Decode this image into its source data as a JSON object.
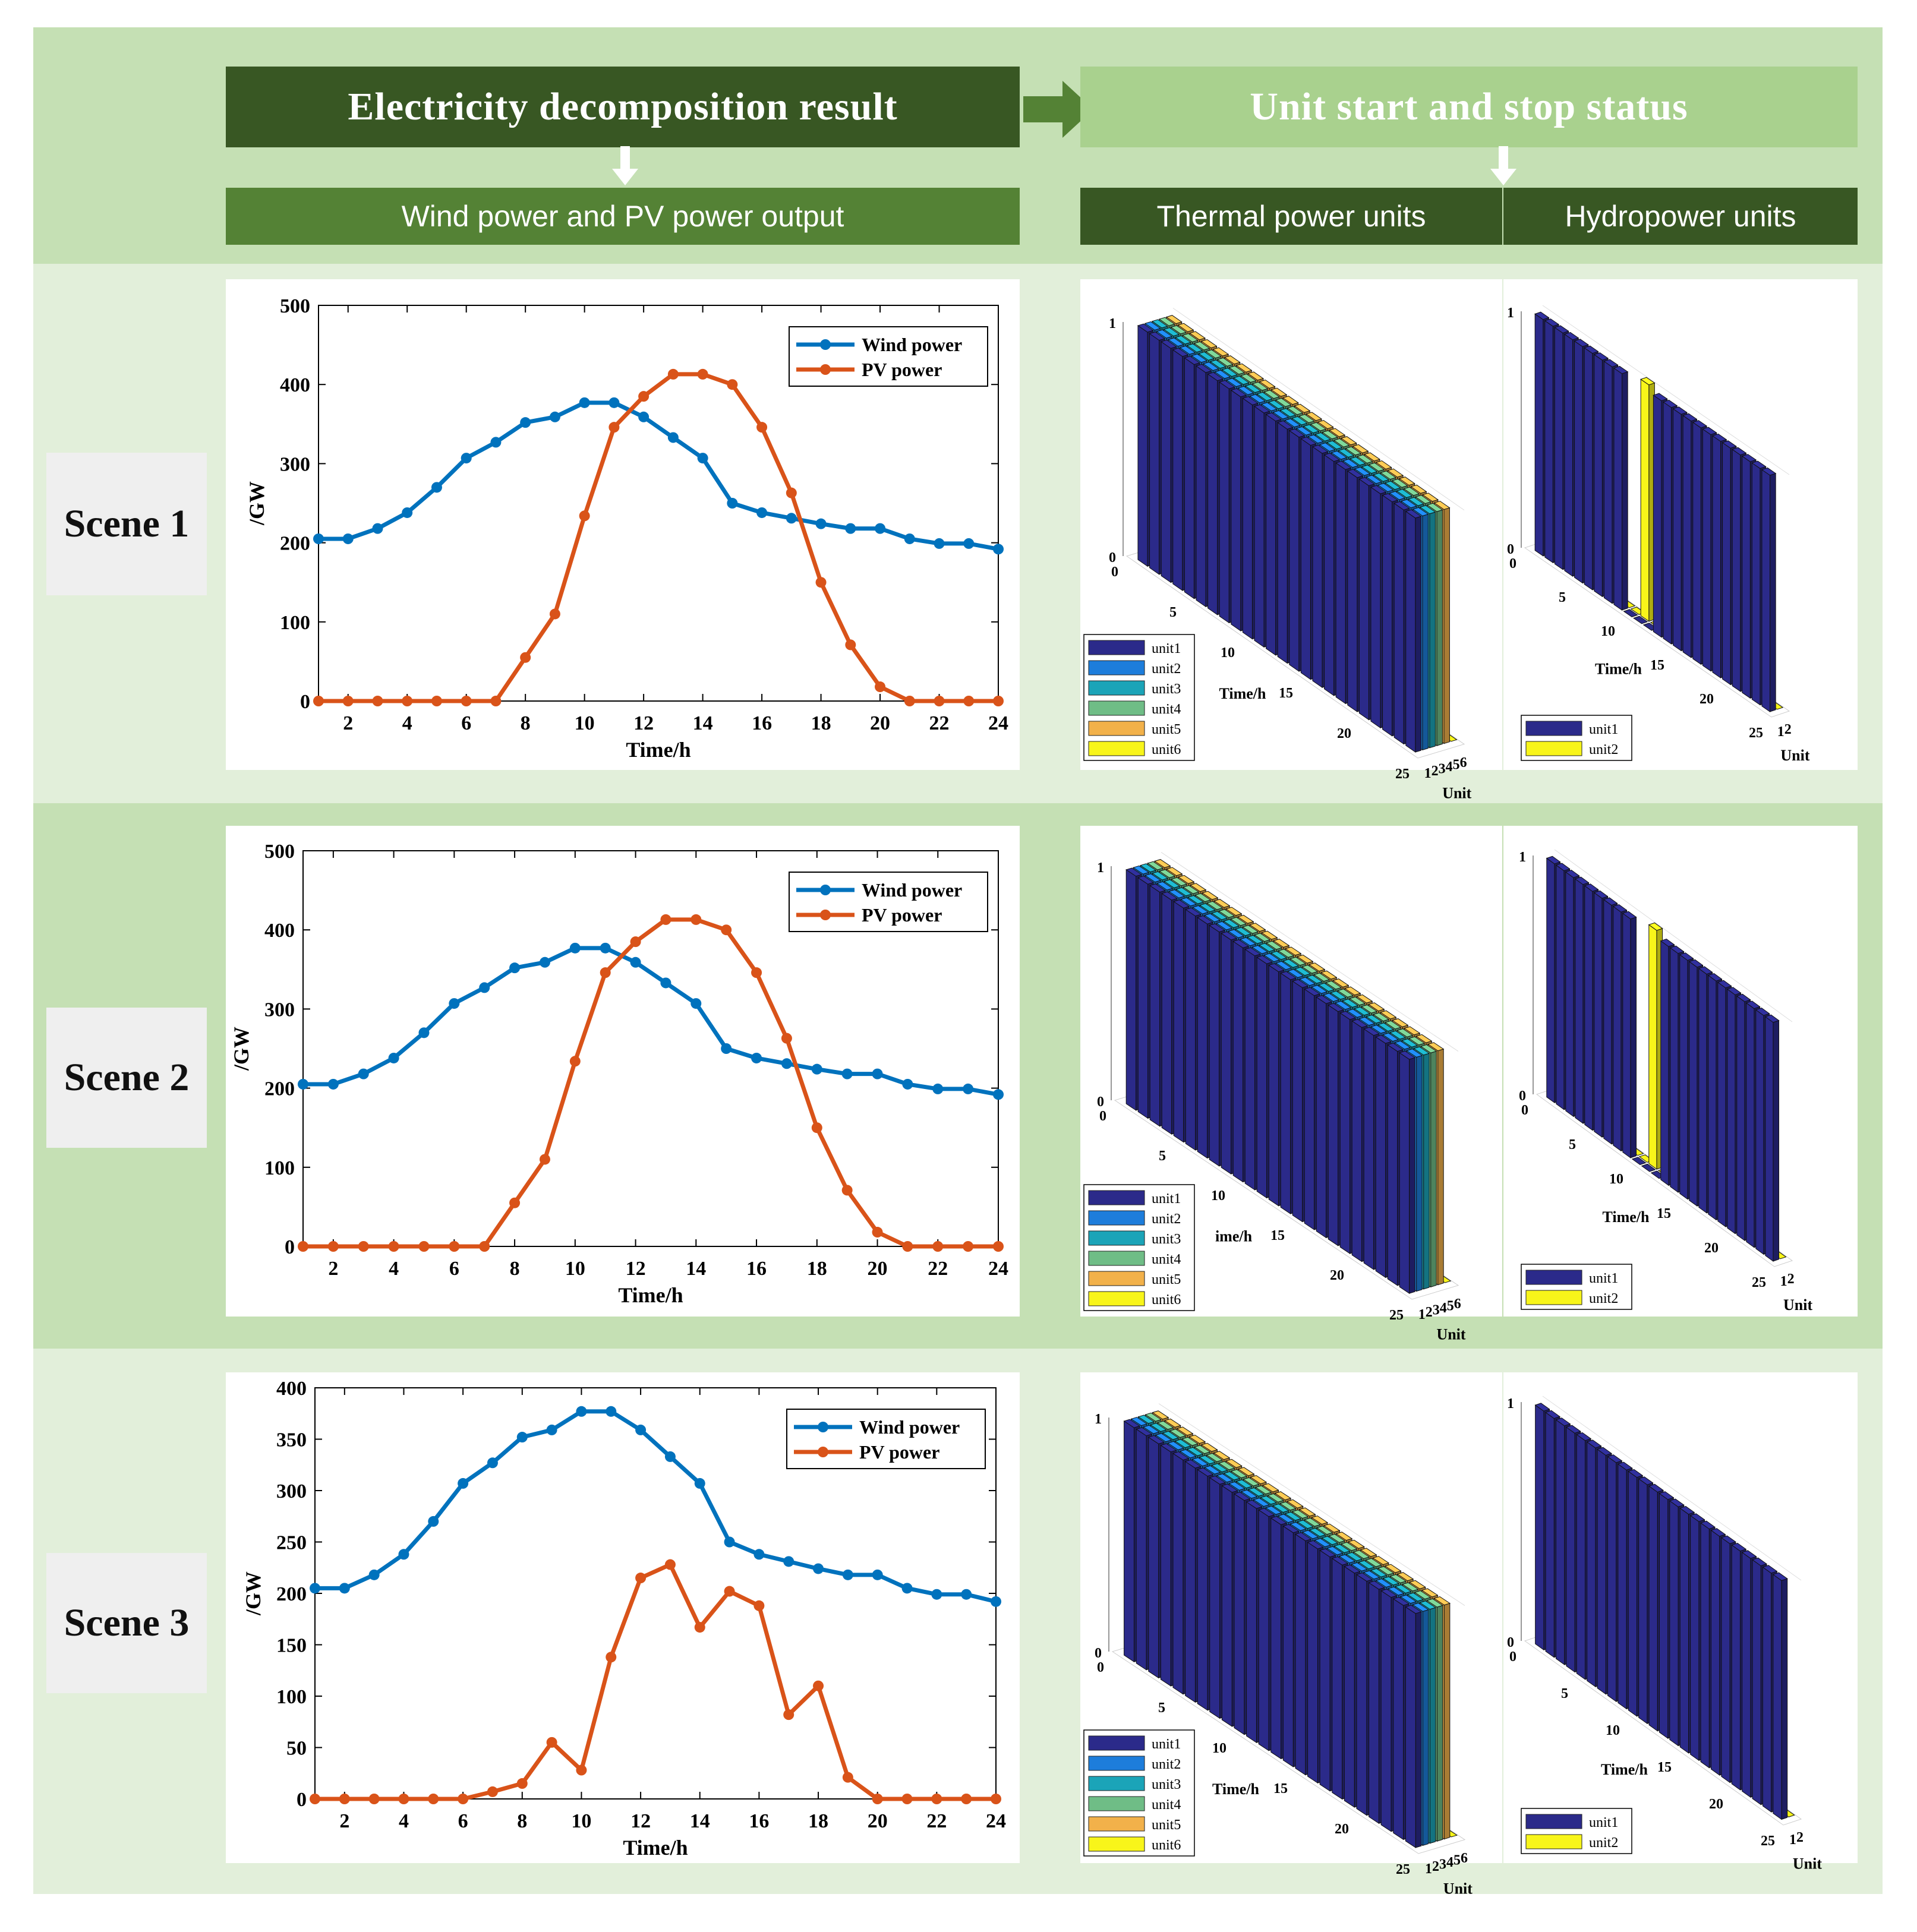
{
  "header": {
    "title_left": "Electricity decomposition result",
    "title_right": "Unit start and stop status",
    "sub_wind_pv": "Wind power and PV power output",
    "sub_thermal": "Thermal power units",
    "sub_hydro": "Hydropower units"
  },
  "colors": {
    "band_dark": "#c5e0b4",
    "band_light": "#e2efda",
    "header_dark": "#385723",
    "header_mid": "#548235",
    "header_light": "#a9d18e",
    "wind": "#0072bd",
    "pv": "#d95319"
  },
  "scenes": [
    {
      "label": "Scene 1",
      "line_chart": {
        "legend": [
          "Wind power",
          "PV power"
        ],
        "ylabel": "/GW",
        "xlabel": "Time/h",
        "yticks": [
          "0",
          "100",
          "200",
          "300",
          "400",
          "500"
        ],
        "xticks": [
          "2",
          "4",
          "6",
          "8",
          "10",
          "12",
          "14",
          "16",
          "18",
          "20",
          "22",
          "24"
        ]
      },
      "thermal": {
        "z_ticks": [
          "0",
          "1"
        ],
        "time_ticks": [
          "0",
          "5",
          "10",
          "15",
          "20",
          "25"
        ],
        "unit_ticks": [
          "1",
          "2",
          "3",
          "4",
          "5",
          "6"
        ],
        "time_label": "Time/h",
        "unit_label": "Unit",
        "legend": [
          "unit1",
          "unit2",
          "unit3",
          "unit4",
          "unit5",
          "unit6"
        ]
      },
      "hydro": {
        "z_ticks": [
          "0",
          "1"
        ],
        "time_ticks": [
          "0",
          "5",
          "10",
          "15",
          "20",
          "25"
        ],
        "unit_ticks": [
          "1",
          "2"
        ],
        "time_label": "Time/h",
        "unit_label": "Unit",
        "legend": [
          "unit1",
          "unit2"
        ]
      }
    },
    {
      "label": "Scene 2",
      "line_chart": {
        "legend": [
          "Wind power",
          "PV power"
        ],
        "ylabel": "/GW",
        "xlabel": "Time/h",
        "yticks": [
          "0",
          "100",
          "200",
          "300",
          "400",
          "500"
        ],
        "xticks": [
          "2",
          "4",
          "6",
          "8",
          "10",
          "12",
          "14",
          "16",
          "18",
          "20",
          "22",
          "24"
        ]
      },
      "thermal": {
        "z_ticks": [
          "0",
          "1"
        ],
        "time_ticks": [
          "0",
          "5",
          "10",
          "15",
          "20",
          "25"
        ],
        "unit_ticks": [
          "1",
          "2",
          "3",
          "4",
          "5",
          "6"
        ],
        "time_label": "ime/h",
        "unit_label": "Unit",
        "legend": [
          "unit1",
          "unit2",
          "unit3",
          "unit4",
          "unit5",
          "unit6"
        ]
      },
      "hydro": {
        "z_ticks": [
          "0",
          "1"
        ],
        "time_ticks": [
          "0",
          "5",
          "10",
          "15",
          "20",
          "25"
        ],
        "unit_ticks": [
          "1",
          "2"
        ],
        "time_label": "Time/h",
        "unit_label": "Unit",
        "legend": [
          "unit1",
          "unit2"
        ]
      }
    },
    {
      "label": "Scene 3",
      "line_chart": {
        "legend": [
          "Wind power",
          "PV power"
        ],
        "ylabel": "/GW",
        "xlabel": "Time/h",
        "yticks": [
          "0",
          "50",
          "100",
          "150",
          "200",
          "250",
          "300",
          "350",
          "400"
        ],
        "xticks": [
          "2",
          "4",
          "6",
          "8",
          "10",
          "12",
          "14",
          "16",
          "18",
          "20",
          "22",
          "24"
        ]
      },
      "thermal": {
        "z_ticks": [
          "0",
          "1"
        ],
        "time_ticks": [
          "0",
          "5",
          "10",
          "15",
          "20",
          "25"
        ],
        "unit_ticks": [
          "1",
          "2",
          "3",
          "4",
          "5",
          "6"
        ],
        "time_label": "Time/h",
        "unit_label": "Unit",
        "legend": [
          "unit1",
          "unit2",
          "unit3",
          "unit4",
          "unit5",
          "unit6"
        ]
      },
      "hydro": {
        "z_ticks": [
          "0",
          "1"
        ],
        "time_ticks": [
          "0",
          "5",
          "10",
          "15",
          "20",
          "25"
        ],
        "unit_ticks": [
          "1",
          "2"
        ],
        "time_label": "Time/h",
        "unit_label": "Unit",
        "legend": [
          "unit1",
          "unit2"
        ]
      }
    }
  ],
  "chart_data": [
    {
      "type": "line",
      "title": "Scene 1",
      "xlabel": "Time/h",
      "ylabel": "/GW",
      "xlim": [
        1,
        24
      ],
      "ylim": [
        0,
        500
      ],
      "x": [
        1,
        2,
        3,
        4,
        5,
        6,
        7,
        8,
        9,
        10,
        11,
        12,
        13,
        14,
        15,
        16,
        17,
        18,
        19,
        20,
        21,
        22,
        23,
        24
      ],
      "series": [
        {
          "name": "Wind power",
          "values": [
            205,
            205,
            218,
            238,
            270,
            307,
            327,
            352,
            359,
            377,
            377,
            359,
            333,
            307,
            250,
            238,
            231,
            224,
            218,
            218,
            205,
            199,
            199,
            192
          ]
        },
        {
          "name": "PV power",
          "values": [
            0,
            0,
            0,
            0,
            0,
            0,
            0,
            55,
            110,
            234,
            346,
            385,
            413,
            413,
            400,
            346,
            263,
            150,
            71,
            18,
            0,
            0,
            0,
            0
          ]
        }
      ],
      "legend_position": "top-right"
    },
    {
      "type": "line",
      "title": "Scene 2",
      "xlabel": "Time/h",
      "ylabel": "/GW",
      "xlim": [
        1,
        24
      ],
      "ylim": [
        0,
        500
      ],
      "x": [
        1,
        2,
        3,
        4,
        5,
        6,
        7,
        8,
        9,
        10,
        11,
        12,
        13,
        14,
        15,
        16,
        17,
        18,
        19,
        20,
        21,
        22,
        23,
        24
      ],
      "series": [
        {
          "name": "Wind power",
          "values": [
            205,
            205,
            218,
            238,
            270,
            307,
            327,
            352,
            359,
            377,
            377,
            359,
            333,
            307,
            250,
            238,
            231,
            224,
            218,
            218,
            205,
            199,
            199,
            192
          ]
        },
        {
          "name": "PV power",
          "values": [
            0,
            0,
            0,
            0,
            0,
            0,
            0,
            55,
            110,
            234,
            346,
            385,
            413,
            413,
            400,
            346,
            263,
            150,
            71,
            18,
            0,
            0,
            0,
            0
          ]
        }
      ],
      "legend_position": "top-right"
    },
    {
      "type": "line",
      "title": "Scene 3",
      "xlabel": "Time/h",
      "ylabel": "/GW",
      "xlim": [
        1,
        24
      ],
      "ylim": [
        0,
        400
      ],
      "x": [
        1,
        2,
        3,
        4,
        5,
        6,
        7,
        8,
        9,
        10,
        11,
        12,
        13,
        14,
        15,
        16,
        17,
        18,
        19,
        20,
        21,
        22,
        23,
        24
      ],
      "series": [
        {
          "name": "Wind power",
          "values": [
            205,
            205,
            218,
            238,
            270,
            307,
            327,
            352,
            359,
            377,
            377,
            359,
            333,
            307,
            250,
            238,
            231,
            224,
            218,
            218,
            205,
            199,
            199,
            192
          ]
        },
        {
          "name": "PV power",
          "values": [
            0,
            0,
            0,
            0,
            0,
            0,
            7,
            15,
            55,
            28,
            138,
            215,
            228,
            167,
            202,
            188,
            82,
            110,
            21,
            0,
            0,
            0,
            0,
            0
          ]
        }
      ],
      "legend_position": "top-right"
    },
    {
      "type": "bar3d",
      "title": "Scene 1 thermal power units",
      "xlabel": "Time/h",
      "ylabel": "Unit",
      "units": [
        "unit1",
        "unit2",
        "unit3",
        "unit4",
        "unit5",
        "unit6"
      ],
      "status": [
        [
          1,
          1,
          1,
          1,
          1,
          1,
          1,
          1,
          1,
          1,
          1,
          1,
          1,
          1,
          1,
          1,
          1,
          1,
          1,
          1,
          1,
          1,
          1,
          1
        ],
        [
          1,
          1,
          1,
          1,
          1,
          1,
          1,
          1,
          1,
          1,
          1,
          1,
          1,
          1,
          1,
          1,
          1,
          1,
          1,
          1,
          1,
          1,
          1,
          1
        ],
        [
          1,
          1,
          1,
          1,
          1,
          1,
          1,
          1,
          1,
          1,
          1,
          1,
          1,
          1,
          1,
          1,
          1,
          1,
          1,
          1,
          1,
          1,
          1,
          1
        ],
        [
          1,
          1,
          1,
          1,
          1,
          1,
          1,
          1,
          1,
          1,
          1,
          1,
          1,
          1,
          1,
          1,
          1,
          1,
          1,
          1,
          1,
          1,
          1,
          1
        ],
        [
          1,
          1,
          1,
          1,
          1,
          1,
          1,
          1,
          1,
          1,
          1,
          1,
          1,
          1,
          1,
          1,
          1,
          1,
          1,
          1,
          1,
          1,
          1,
          1
        ],
        [
          0,
          0,
          0,
          0,
          0,
          0,
          0,
          0,
          0,
          0,
          0,
          0,
          0,
          0,
          0,
          0,
          0,
          0,
          0,
          0,
          0,
          0,
          0,
          0
        ]
      ]
    },
    {
      "type": "bar3d",
      "title": "Scene 1 hydropower units",
      "xlabel": "Time/h",
      "ylabel": "Unit",
      "units": [
        "unit1",
        "unit2"
      ],
      "status": [
        [
          1,
          1,
          1,
          1,
          1,
          1,
          1,
          1,
          1,
          0,
          0,
          0,
          1,
          1,
          1,
          1,
          1,
          1,
          1,
          1,
          1,
          1,
          1,
          1
        ],
        [
          0,
          0,
          0,
          0,
          0,
          0,
          0,
          0,
          0,
          0,
          1,
          0,
          0,
          0,
          0,
          0,
          0,
          0,
          0,
          0,
          0,
          0,
          0,
          0
        ]
      ]
    },
    {
      "type": "bar3d",
      "title": "Scene 2 thermal power units",
      "xlabel": "ime/h",
      "ylabel": "Unit",
      "units": [
        "unit1",
        "unit2",
        "unit3",
        "unit4",
        "unit5",
        "unit6"
      ],
      "status": [
        [
          1,
          1,
          1,
          1,
          1,
          1,
          1,
          1,
          1,
          1,
          1,
          1,
          1,
          1,
          1,
          1,
          1,
          1,
          1,
          1,
          1,
          1,
          1,
          1
        ],
        [
          1,
          1,
          1,
          1,
          1,
          1,
          1,
          1,
          1,
          1,
          1,
          1,
          1,
          1,
          1,
          1,
          1,
          1,
          1,
          1,
          1,
          1,
          1,
          1
        ],
        [
          1,
          1,
          1,
          1,
          1,
          1,
          1,
          1,
          1,
          1,
          1,
          1,
          1,
          1,
          1,
          1,
          1,
          1,
          1,
          1,
          1,
          1,
          1,
          1
        ],
        [
          1,
          1,
          1,
          1,
          1,
          1,
          1,
          1,
          1,
          1,
          1,
          1,
          1,
          1,
          1,
          1,
          1,
          1,
          1,
          1,
          1,
          1,
          1,
          1
        ],
        [
          1,
          1,
          1,
          1,
          1,
          1,
          1,
          1,
          1,
          1,
          1,
          1,
          1,
          1,
          1,
          1,
          1,
          1,
          1,
          1,
          1,
          1,
          1,
          1
        ],
        [
          0,
          0,
          0,
          0,
          0,
          0,
          0,
          0,
          0,
          0,
          0,
          0,
          0,
          0,
          0,
          0,
          0,
          0,
          0,
          0,
          0,
          0,
          0,
          0
        ]
      ]
    },
    {
      "type": "bar3d",
      "title": "Scene 2 hydropower units",
      "xlabel": "Time/h",
      "ylabel": "Unit",
      "units": [
        "unit1",
        "unit2"
      ],
      "status": [
        [
          1,
          1,
          1,
          1,
          1,
          1,
          1,
          1,
          1,
          0,
          0,
          0,
          1,
          1,
          1,
          1,
          1,
          1,
          1,
          1,
          1,
          1,
          1,
          1
        ],
        [
          0,
          0,
          0,
          0,
          0,
          0,
          0,
          0,
          0,
          0,
          1,
          0,
          0,
          0,
          0,
          0,
          0,
          0,
          0,
          0,
          0,
          0,
          0,
          0
        ]
      ]
    },
    {
      "type": "bar3d",
      "title": "Scene 3 thermal power units",
      "xlabel": "Time/h",
      "ylabel": "Unit",
      "units": [
        "unit1",
        "unit2",
        "unit3",
        "unit4",
        "unit5",
        "unit6"
      ],
      "status": [
        [
          1,
          1,
          1,
          1,
          1,
          1,
          1,
          1,
          1,
          1,
          1,
          1,
          1,
          1,
          1,
          1,
          1,
          1,
          1,
          1,
          1,
          1,
          1,
          1
        ],
        [
          1,
          1,
          1,
          1,
          1,
          1,
          1,
          1,
          1,
          1,
          1,
          1,
          1,
          1,
          1,
          1,
          1,
          1,
          1,
          1,
          1,
          1,
          1,
          1
        ],
        [
          1,
          1,
          1,
          1,
          1,
          1,
          1,
          1,
          1,
          1,
          1,
          1,
          1,
          1,
          1,
          1,
          1,
          1,
          1,
          1,
          1,
          1,
          1,
          1
        ],
        [
          1,
          1,
          1,
          1,
          1,
          1,
          1,
          1,
          1,
          1,
          1,
          1,
          1,
          1,
          1,
          1,
          1,
          1,
          1,
          1,
          1,
          1,
          1,
          1
        ],
        [
          1,
          1,
          1,
          1,
          1,
          1,
          1,
          1,
          1,
          1,
          1,
          1,
          1,
          1,
          1,
          1,
          1,
          1,
          1,
          1,
          1,
          1,
          1,
          1
        ],
        [
          0,
          0,
          0,
          0,
          0,
          0,
          0,
          0,
          0,
          0,
          0,
          0,
          0,
          0,
          0,
          0,
          0,
          0,
          0,
          0,
          0,
          0,
          0,
          0
        ]
      ]
    },
    {
      "type": "bar3d",
      "title": "Scene 3 hydropower units",
      "xlabel": "Time/h",
      "ylabel": "Unit",
      "units": [
        "unit1",
        "unit2"
      ],
      "status": [
        [
          1,
          1,
          1,
          1,
          1,
          1,
          1,
          1,
          1,
          1,
          1,
          1,
          1,
          1,
          1,
          1,
          1,
          1,
          1,
          1,
          1,
          1,
          1,
          1
        ],
        [
          0,
          0,
          0,
          0,
          0,
          0,
          0,
          0,
          0,
          0,
          0,
          0,
          0,
          0,
          0,
          0,
          0,
          0,
          0,
          0,
          0,
          0,
          0,
          0
        ]
      ]
    }
  ]
}
